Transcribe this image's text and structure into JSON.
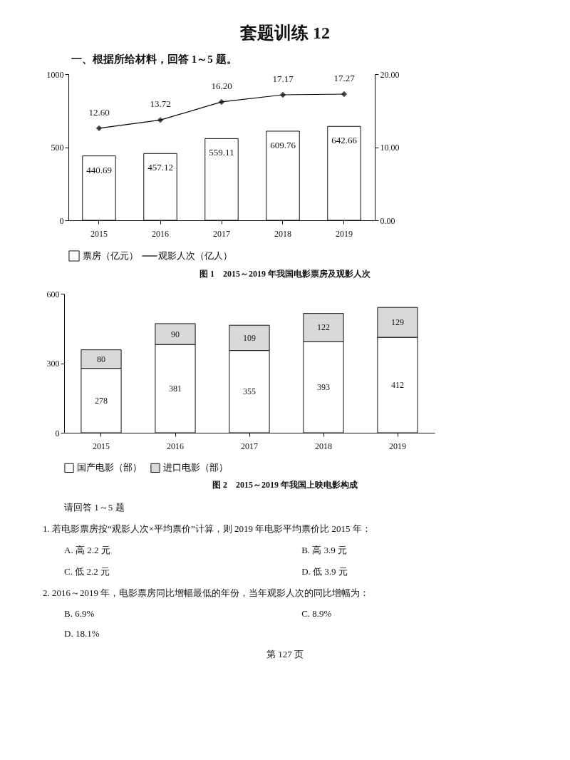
{
  "chart_data": [
    {
      "type": "bar",
      "title": "套题训练 12",
      "subtitle": "一、根据所给材料，回答 1～5 题。",
      "categories": [
        "2015",
        "2016",
        "2017",
        "2018",
        "2019"
      ],
      "series": [
        {
          "name": "票房（亿元）",
          "type": "bar",
          "color": "#ffffff",
          "values": [
            440.69,
            457.12,
            559.11,
            609.76,
            642.66
          ]
        },
        {
          "name": "观影人次（亿人）",
          "type": "line",
          "axis": "y2",
          "color": "#000000",
          "values": [
            12.6,
            13.72,
            16.2,
            17.17,
            17.27
          ],
          "value_labels": [
            "12.60",
            "13.72",
            "16.20",
            "17.17",
            "17.27"
          ]
        }
      ],
      "ylim": [
        0,
        1000
      ],
      "yticks": [
        0,
        500,
        1000
      ],
      "y2lim": [
        0,
        20
      ],
      "y2ticks": [
        {
          "value": 0,
          "label": "0.00"
        },
        {
          "value": 10,
          "label": "10.00"
        },
        {
          "value": 20,
          "label": "20.00"
        }
      ],
      "marker": "diamond",
      "data_labels": true,
      "grid": false,
      "legend": "bottom",
      "annotations": [
        "图 1　2015～2019 年我国电影票房及观影人次"
      ]
    },
    {
      "type": "bar",
      "stacked": true,
      "categories": [
        "2015",
        "2016",
        "2017",
        "2018",
        "2019"
      ],
      "series": [
        {
          "name": "国产电影（部）",
          "color": "#ffffff",
          "values": [
            278,
            381,
            355,
            393,
            412
          ]
        },
        {
          "name": "进口电影（部）",
          "color": "#d9d9d9",
          "values": [
            80,
            90,
            109,
            122,
            129
          ]
        }
      ],
      "ylim": [
        0,
        600
      ],
      "yticks": [
        0,
        300,
        600
      ],
      "data_labels": true,
      "grid": false,
      "legend": "bottom",
      "annotations": [
        "图 2　2015～2019 年我国上映电影构成",
        "请回答 1～5 题",
        "1. 若电影票房按“观影人次×平均票价”计算，则 2019 年电影平均票价比 2015 年：",
        "A. 高 2.2 元",
        "B. 高 3.9 元",
        "C. 低 2.2 元",
        "D. 低 3.9 元",
        "2. 2016～2019 年，电影票房同比增幅最低的年份，当年观影人次的同比增幅为：",
        "B. 6.9%",
        "C. 8.9%",
        "D. 18.1%",
        "第 127 页"
      ]
    }
  ]
}
